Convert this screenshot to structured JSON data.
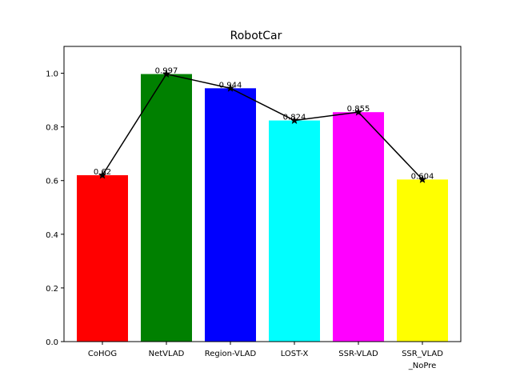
{
  "chart_data": {
    "type": "bar",
    "title": "RobotCar",
    "xlabel": "",
    "ylabel": "",
    "categories": [
      "CoHOG",
      "NetVLAD",
      "Region-VLAD",
      "LOST-X",
      "SSR-VLAD",
      "SSR_VLAD\n_NoPre"
    ],
    "values": [
      0.62,
      0.997,
      0.944,
      0.824,
      0.855,
      0.604
    ],
    "data_labels": [
      "0.62",
      "0.997",
      "0.944",
      "0.824",
      "0.855",
      "0.604"
    ],
    "bar_colors": [
      "#ff0000",
      "#008000",
      "#0000ff",
      "#00ffff",
      "#ff00ff",
      "#ffff00"
    ],
    "overlay_line": {
      "color": "#000000",
      "marker": "star"
    },
    "ylim": [
      0,
      1.1
    ],
    "yticks": [
      0.0,
      0.2,
      0.4,
      0.6,
      0.8,
      1.0
    ],
    "ytick_labels": [
      "0.0",
      "0.2",
      "0.4",
      "0.6",
      "0.8",
      "1.0"
    ],
    "grid": false,
    "legend": "none"
  }
}
